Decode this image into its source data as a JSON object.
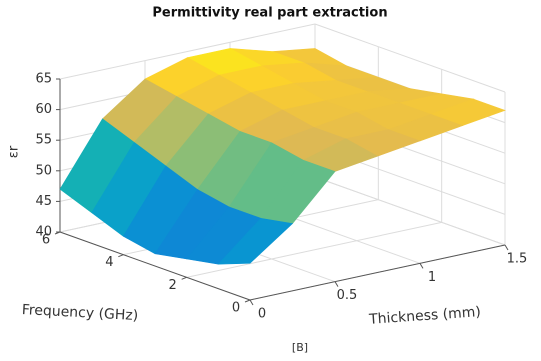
{
  "chart_data": {
    "type": "surface",
    "title": "Permittivity real part extraction",
    "xlabel": "Thickness (mm)",
    "ylabel": "Frequency (GHz)",
    "zlabel": "εr",
    "caption": "[B]",
    "colormap": "parula",
    "grid": true,
    "x": [
      0,
      0.25,
      0.5,
      0.75,
      1,
      1.25,
      1.5
    ],
    "y": [
      0,
      1,
      2,
      3,
      4,
      5,
      6
    ],
    "z": [
      [
        46,
        51,
        58,
        59,
        60,
        61,
        62
      ],
      [
        44,
        50,
        58,
        60,
        60,
        61,
        62
      ],
      [
        43,
        50,
        59,
        60,
        61,
        61,
        61
      ],
      [
        42,
        51,
        59,
        61,
        61,
        61,
        60
      ],
      [
        43,
        53,
        60,
        62,
        62,
        61,
        60
      ],
      [
        45,
        55,
        61,
        63,
        63,
        62,
        60
      ],
      [
        47,
        57,
        62,
        64,
        64,
        62,
        61
      ]
    ],
    "xlim": [
      0,
      1.5
    ],
    "xticks": [
      0,
      0.5,
      1,
      1.5
    ],
    "ylim": [
      0,
      6
    ],
    "yticks": [
      0,
      2,
      4,
      6
    ],
    "zlim": [
      40,
      65
    ],
    "zticks": [
      40,
      45,
      50,
      55,
      60,
      65
    ]
  }
}
